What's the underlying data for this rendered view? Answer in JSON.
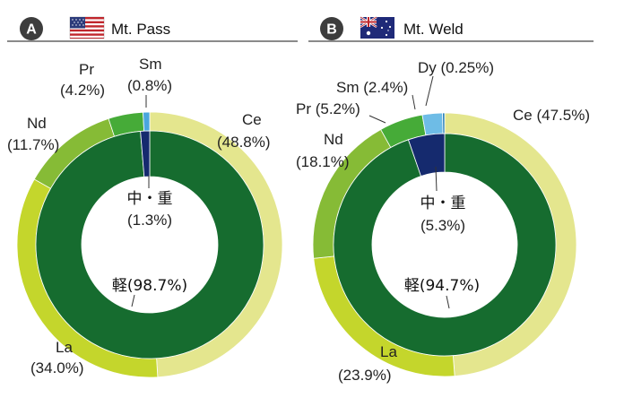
{
  "chart_data": [
    {
      "type": "pie",
      "badge": "A",
      "title": "Mt. Pass",
      "flag": "us-flag-icon",
      "outer": [
        {
          "name": "Ce",
          "value": 48.8,
          "label": "(48.8%)",
          "color": "#e4e68e"
        },
        {
          "name": "La",
          "value": 34.0,
          "label": "(34.0%)",
          "color": "#c4d62c"
        },
        {
          "name": "Nd",
          "value": 11.7,
          "label": "(11.7%)",
          "color": "#86bb36"
        },
        {
          "name": "Pr",
          "value": 4.2,
          "label": "(4.2%)",
          "color": "#46ab38"
        },
        {
          "name": "Sm",
          "value": 0.8,
          "label": "(0.8%)",
          "color": "#4aa6dd"
        }
      ],
      "inner": [
        {
          "name": "軽(98.7%)",
          "value": 98.7,
          "color": "#166c2f"
        },
        {
          "name": "中・重",
          "value": 1.3,
          "label": "(1.3%)",
          "color": "#152a6e"
        }
      ]
    },
    {
      "type": "pie",
      "badge": "B",
      "title": "Mt. Weld",
      "flag": "australia-flag-icon",
      "outer": [
        {
          "name": "Ce",
          "value": 47.5,
          "label": "Ce (47.5%)",
          "color": "#e4e68e"
        },
        {
          "name": "La",
          "value": 23.9,
          "label": "(23.9%)",
          "color": "#c4d62c"
        },
        {
          "name": "Nd",
          "value": 18.1,
          "label": "(18.1%)",
          "color": "#86bb36"
        },
        {
          "name": "Pr",
          "value": 5.2,
          "label": "Pr (5.2%)",
          "color": "#46ab38"
        },
        {
          "name": "Sm",
          "value": 2.4,
          "label": "Sm (2.4%)",
          "color": "#6ebce6"
        },
        {
          "name": "Dy",
          "value": 0.25,
          "label": "Dy (0.25%)",
          "color": "#1e79b4"
        }
      ],
      "inner": [
        {
          "name": "軽(94.7%)",
          "value": 94.7,
          "color": "#166c2f"
        },
        {
          "name": "中・重",
          "value": 5.3,
          "label": "(5.3%)",
          "color": "#152a6e"
        }
      ]
    }
  ]
}
